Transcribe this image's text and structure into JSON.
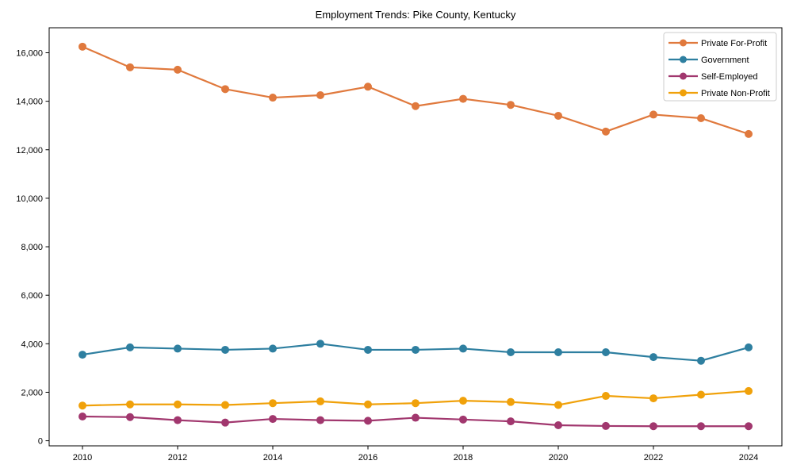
{
  "chart_data": {
    "type": "line",
    "title": "Employment Trends: Pike County, Kentucky",
    "xlabel": "",
    "ylabel": "",
    "grid": false,
    "legend_position": "upper right",
    "xlim": [
      2009.3,
      2024.7
    ],
    "ylim": [
      -210,
      17030
    ],
    "x": [
      2010,
      2011,
      2012,
      2013,
      2014,
      2015,
      2016,
      2017,
      2018,
      2019,
      2020,
      2021,
      2022,
      2023,
      2024
    ],
    "x_ticks": [
      2010,
      2012,
      2014,
      2016,
      2018,
      2020,
      2022,
      2024
    ],
    "x_tick_labels": [
      "2010",
      "2012",
      "2014",
      "2016",
      "2018",
      "2020",
      "2022",
      "2024"
    ],
    "y_ticks": [
      0,
      2000,
      4000,
      6000,
      8000,
      10000,
      12000,
      14000,
      16000
    ],
    "y_tick_labels": [
      "0",
      "2,000",
      "4,000",
      "6,000",
      "8,000",
      "10,000",
      "12,000",
      "14,000",
      "16,000"
    ],
    "series": [
      {
        "name": "Private For-Profit",
        "color": "#E0793D",
        "values": [
          16250,
          15400,
          15300,
          14500,
          14150,
          14250,
          14600,
          13800,
          14100,
          13850,
          13400,
          12750,
          13450,
          13300,
          12650
        ]
      },
      {
        "name": "Government",
        "color": "#2E7FA0",
        "values": [
          3550,
          3850,
          3800,
          3750,
          3800,
          4000,
          3750,
          3750,
          3800,
          3650,
          3650,
          3650,
          3450,
          3300,
          3850
        ]
      },
      {
        "name": "Self-Employed",
        "color": "#A1376E",
        "values": [
          1000,
          975,
          850,
          750,
          900,
          850,
          825,
          950,
          875,
          800,
          640,
          610,
          600,
          600,
          600
        ]
      },
      {
        "name": "Private Non-Profit",
        "color": "#F0A10A",
        "values": [
          1450,
          1500,
          1500,
          1475,
          1550,
          1625,
          1500,
          1550,
          1650,
          1600,
          1475,
          1850,
          1750,
          1900,
          2050
        ]
      }
    ],
    "marker": "circle",
    "axes_color": "#000000",
    "legend_border_color": "#cccccc",
    "background_color": "#ffffff"
  }
}
